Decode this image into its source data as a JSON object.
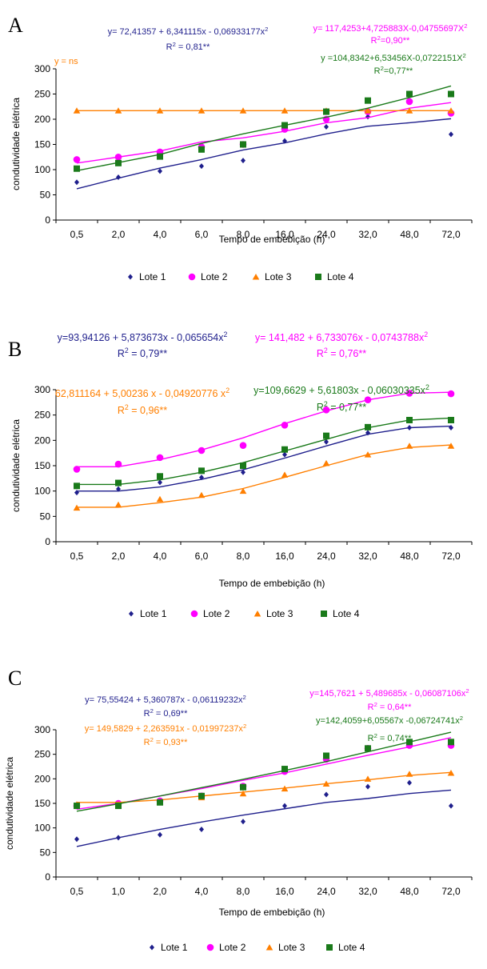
{
  "colors": {
    "lote1": "#1f1f8c",
    "lote2": "#ff00ff",
    "lote3": "#ff7f00",
    "lote4": "#1a7a1a"
  },
  "chart_data": [
    {
      "type": "scatter",
      "panel_label": "A",
      "ylabel": "condutividade elétrica",
      "xlabel": "Tempo de embebição (h)",
      "categories": [
        "0,5",
        "2,0",
        "4,0",
        "6,0",
        "8,0",
        "16,0",
        "24,0",
        "32,0",
        "48,0",
        "72,0"
      ],
      "ylim": [
        0,
        300
      ],
      "yticks": [
        0,
        50,
        100,
        150,
        200,
        250,
        300
      ],
      "legend_position": "bottom",
      "series": [
        {
          "name": "Lote 1",
          "marker": "diamond",
          "color": "#1f1f8c",
          "values": [
            75,
            85,
            97,
            107,
            118,
            157,
            185,
            205,
            235,
            170
          ],
          "fit": [
            62,
            83,
            103,
            120,
            139,
            153,
            171,
            186,
            193,
            201
          ]
        },
        {
          "name": "Lote 2",
          "marker": "circle",
          "color": "#ff00ff",
          "values": [
            120,
            125,
            135,
            145,
            150,
            180,
            200,
            215,
            235,
            212
          ],
          "fit": [
            113,
            125,
            137,
            155,
            163,
            176,
            193,
            203,
            222,
            233
          ]
        },
        {
          "name": "Lote 3",
          "marker": "triangle",
          "color": "#ff7f00",
          "values": [
            217,
            217,
            217,
            217,
            217,
            217,
            217,
            217,
            217,
            217
          ],
          "fit": [
            217,
            217,
            217,
            217,
            217,
            217,
            217,
            217,
            217,
            217
          ]
        },
        {
          "name": "Lote 4",
          "marker": "square",
          "color": "#1a7a1a",
          "values": [
            102,
            113,
            126,
            140,
            150,
            188,
            215,
            237,
            250,
            250
          ],
          "fit": [
            98,
            114,
            130,
            152,
            171,
            188,
            204,
            222,
            243,
            266
          ]
        }
      ],
      "equations": [
        {
          "series": "Lote 1",
          "color": "#1f1f8c",
          "lines": [
            "y= 72,41357 + 6,341115x - 0,06933177x²",
            "R² = 0,81**"
          ]
        },
        {
          "series": "Lote 2",
          "color": "#ff00ff",
          "lines": [
            "y= 117,4253+4,725883X-0,04755697X²",
            "R²=0,90**"
          ]
        },
        {
          "series": "Lote 3",
          "color": "#ff7f00",
          "lines": [
            "y = ns"
          ]
        },
        {
          "series": "Lote 4",
          "color": "#1a7a1a",
          "lines": [
            "y =104,8342+6,53456X-0,0722151X²",
            "R²=0,77**"
          ]
        }
      ]
    },
    {
      "type": "scatter",
      "panel_label": "B",
      "ylabel": "condutividade elétrica",
      "xlabel": "Tempo de embebição (h)",
      "categories": [
        "0,5",
        "2,0",
        "4,0",
        "6,0",
        "8,0",
        "16,0",
        "24,0",
        "32,0",
        "48,0",
        "72,0"
      ],
      "ylim": [
        0,
        300
      ],
      "yticks": [
        0,
        50,
        100,
        150,
        200,
        250,
        300
      ],
      "legend_position": "bottom",
      "series": [
        {
          "name": "Lote 1",
          "marker": "diamond",
          "color": "#1f1f8c",
          "values": [
            97,
            104,
            117,
            127,
            137,
            172,
            197,
            215,
            225,
            225
          ],
          "fit": [
            100,
            100,
            108,
            123,
            142,
            165,
            189,
            212,
            225,
            228
          ]
        },
        {
          "name": "Lote 2",
          "marker": "circle",
          "color": "#ff00ff",
          "values": [
            143,
            153,
            166,
            180,
            190,
            230,
            260,
            280,
            293,
            292
          ],
          "fit": [
            148,
            148,
            162,
            181,
            205,
            233,
            258,
            280,
            293,
            295
          ]
        },
        {
          "name": "Lote 3",
          "marker": "triangle",
          "color": "#ff7f00",
          "values": [
            67,
            73,
            84,
            92,
            100,
            132,
            155,
            172,
            189,
            189
          ],
          "fit": [
            68,
            68,
            77,
            88,
            105,
            127,
            150,
            172,
            186,
            191
          ]
        },
        {
          "name": "Lote 4",
          "marker": "square",
          "color": "#1a7a1a",
          "values": [
            110,
            116,
            129,
            140,
            150,
            182,
            209,
            226,
            240,
            240
          ],
          "fit": [
            113,
            113,
            122,
            137,
            156,
            179,
            202,
            225,
            240,
            244
          ]
        }
      ],
      "equations": [
        {
          "series": "Lote 1",
          "color": "#1f1f8c",
          "lines": [
            "y=93,94126 + 5,873673x - 0,065654x²",
            "R² = 0,79**"
          ]
        },
        {
          "series": "Lote 2",
          "color": "#ff00ff",
          "lines": [
            "y= 141,482 + 6,733076x - 0,0743788x²",
            "R² = 0,76**"
          ]
        },
        {
          "series": "Lote 3",
          "color": "#ff7f00",
          "lines": [
            "62,811164 + 5,00236 x - 0,04920776 x²",
            "R² = 0,96**"
          ]
        },
        {
          "series": "Lote 4",
          "color": "#1a7a1a",
          "lines": [
            "y=109,6629 + 5,61803x - 0,06030335x²",
            "R² = 0,77**"
          ]
        }
      ]
    },
    {
      "type": "scatter",
      "panel_label": "C",
      "ylabel": "condutividade elétrica",
      "xlabel": "Tempo de embebição (h)",
      "categories": [
        "0,5",
        "1,0",
        "2,0",
        "4,0",
        "8,0",
        "16,0",
        "24,0",
        "32,0",
        "48,0",
        "72,0"
      ],
      "ylim": [
        0,
        300
      ],
      "yticks": [
        0,
        50,
        100,
        150,
        200,
        250,
        300
      ],
      "legend_position": "bottom",
      "series": [
        {
          "name": "Lote 1",
          "marker": "diamond",
          "color": "#1f1f8c",
          "values": [
            77,
            80,
            86,
            97,
            113,
            145,
            168,
            184,
            192,
            145
          ],
          "fit": [
            62,
            80,
            97,
            112,
            126,
            139,
            152,
            160,
            170,
            177
          ]
        },
        {
          "name": "Lote 2",
          "marker": "circle",
          "color": "#ff00ff",
          "values": [
            145,
            150,
            155,
            165,
            185,
            215,
            240,
            262,
            268,
            268
          ],
          "fit": [
            138,
            150,
            165,
            180,
            197,
            212,
            230,
            248,
            265,
            284
          ]
        },
        {
          "name": "Lote 3",
          "marker": "triangle",
          "color": "#ff7f00",
          "values": [
            148,
            148,
            153,
            162,
            170,
            180,
            190,
            200,
            210,
            212
          ],
          "fit": [
            152,
            152,
            157,
            165,
            173,
            181,
            190,
            198,
            207,
            213
          ]
        },
        {
          "name": "Lote 4",
          "marker": "square",
          "color": "#1a7a1a",
          "values": [
            145,
            145,
            152,
            165,
            183,
            220,
            247,
            262,
            275,
            275
          ],
          "fit": [
            134,
            149,
            165,
            182,
            199,
            217,
            235,
            255,
            275,
            295
          ]
        }
      ],
      "equations": [
        {
          "series": "Lote 1",
          "color": "#1f1f8c",
          "lines": [
            "y= 75,55424 + 5,360787x - 0,06119232x²",
            "R² = 0,69**"
          ]
        },
        {
          "series": "Lote 3",
          "color": "#ff7f00",
          "lines": [
            "y= 149,5829 + 2,263591x - 0,01997237x²",
            "R² = 0,93**"
          ]
        },
        {
          "series": "Lote 2",
          "color": "#ff00ff",
          "lines": [
            "y=145,7621 + 5,489685x - 0,06087106x²",
            "R² = 0,64**"
          ]
        },
        {
          "series": "Lote 4",
          "color": "#1a7a1a",
          "lines": [
            "y=142,4059+6,05567x -0,06724741x²",
            "R² = 0,74**"
          ]
        }
      ]
    }
  ]
}
